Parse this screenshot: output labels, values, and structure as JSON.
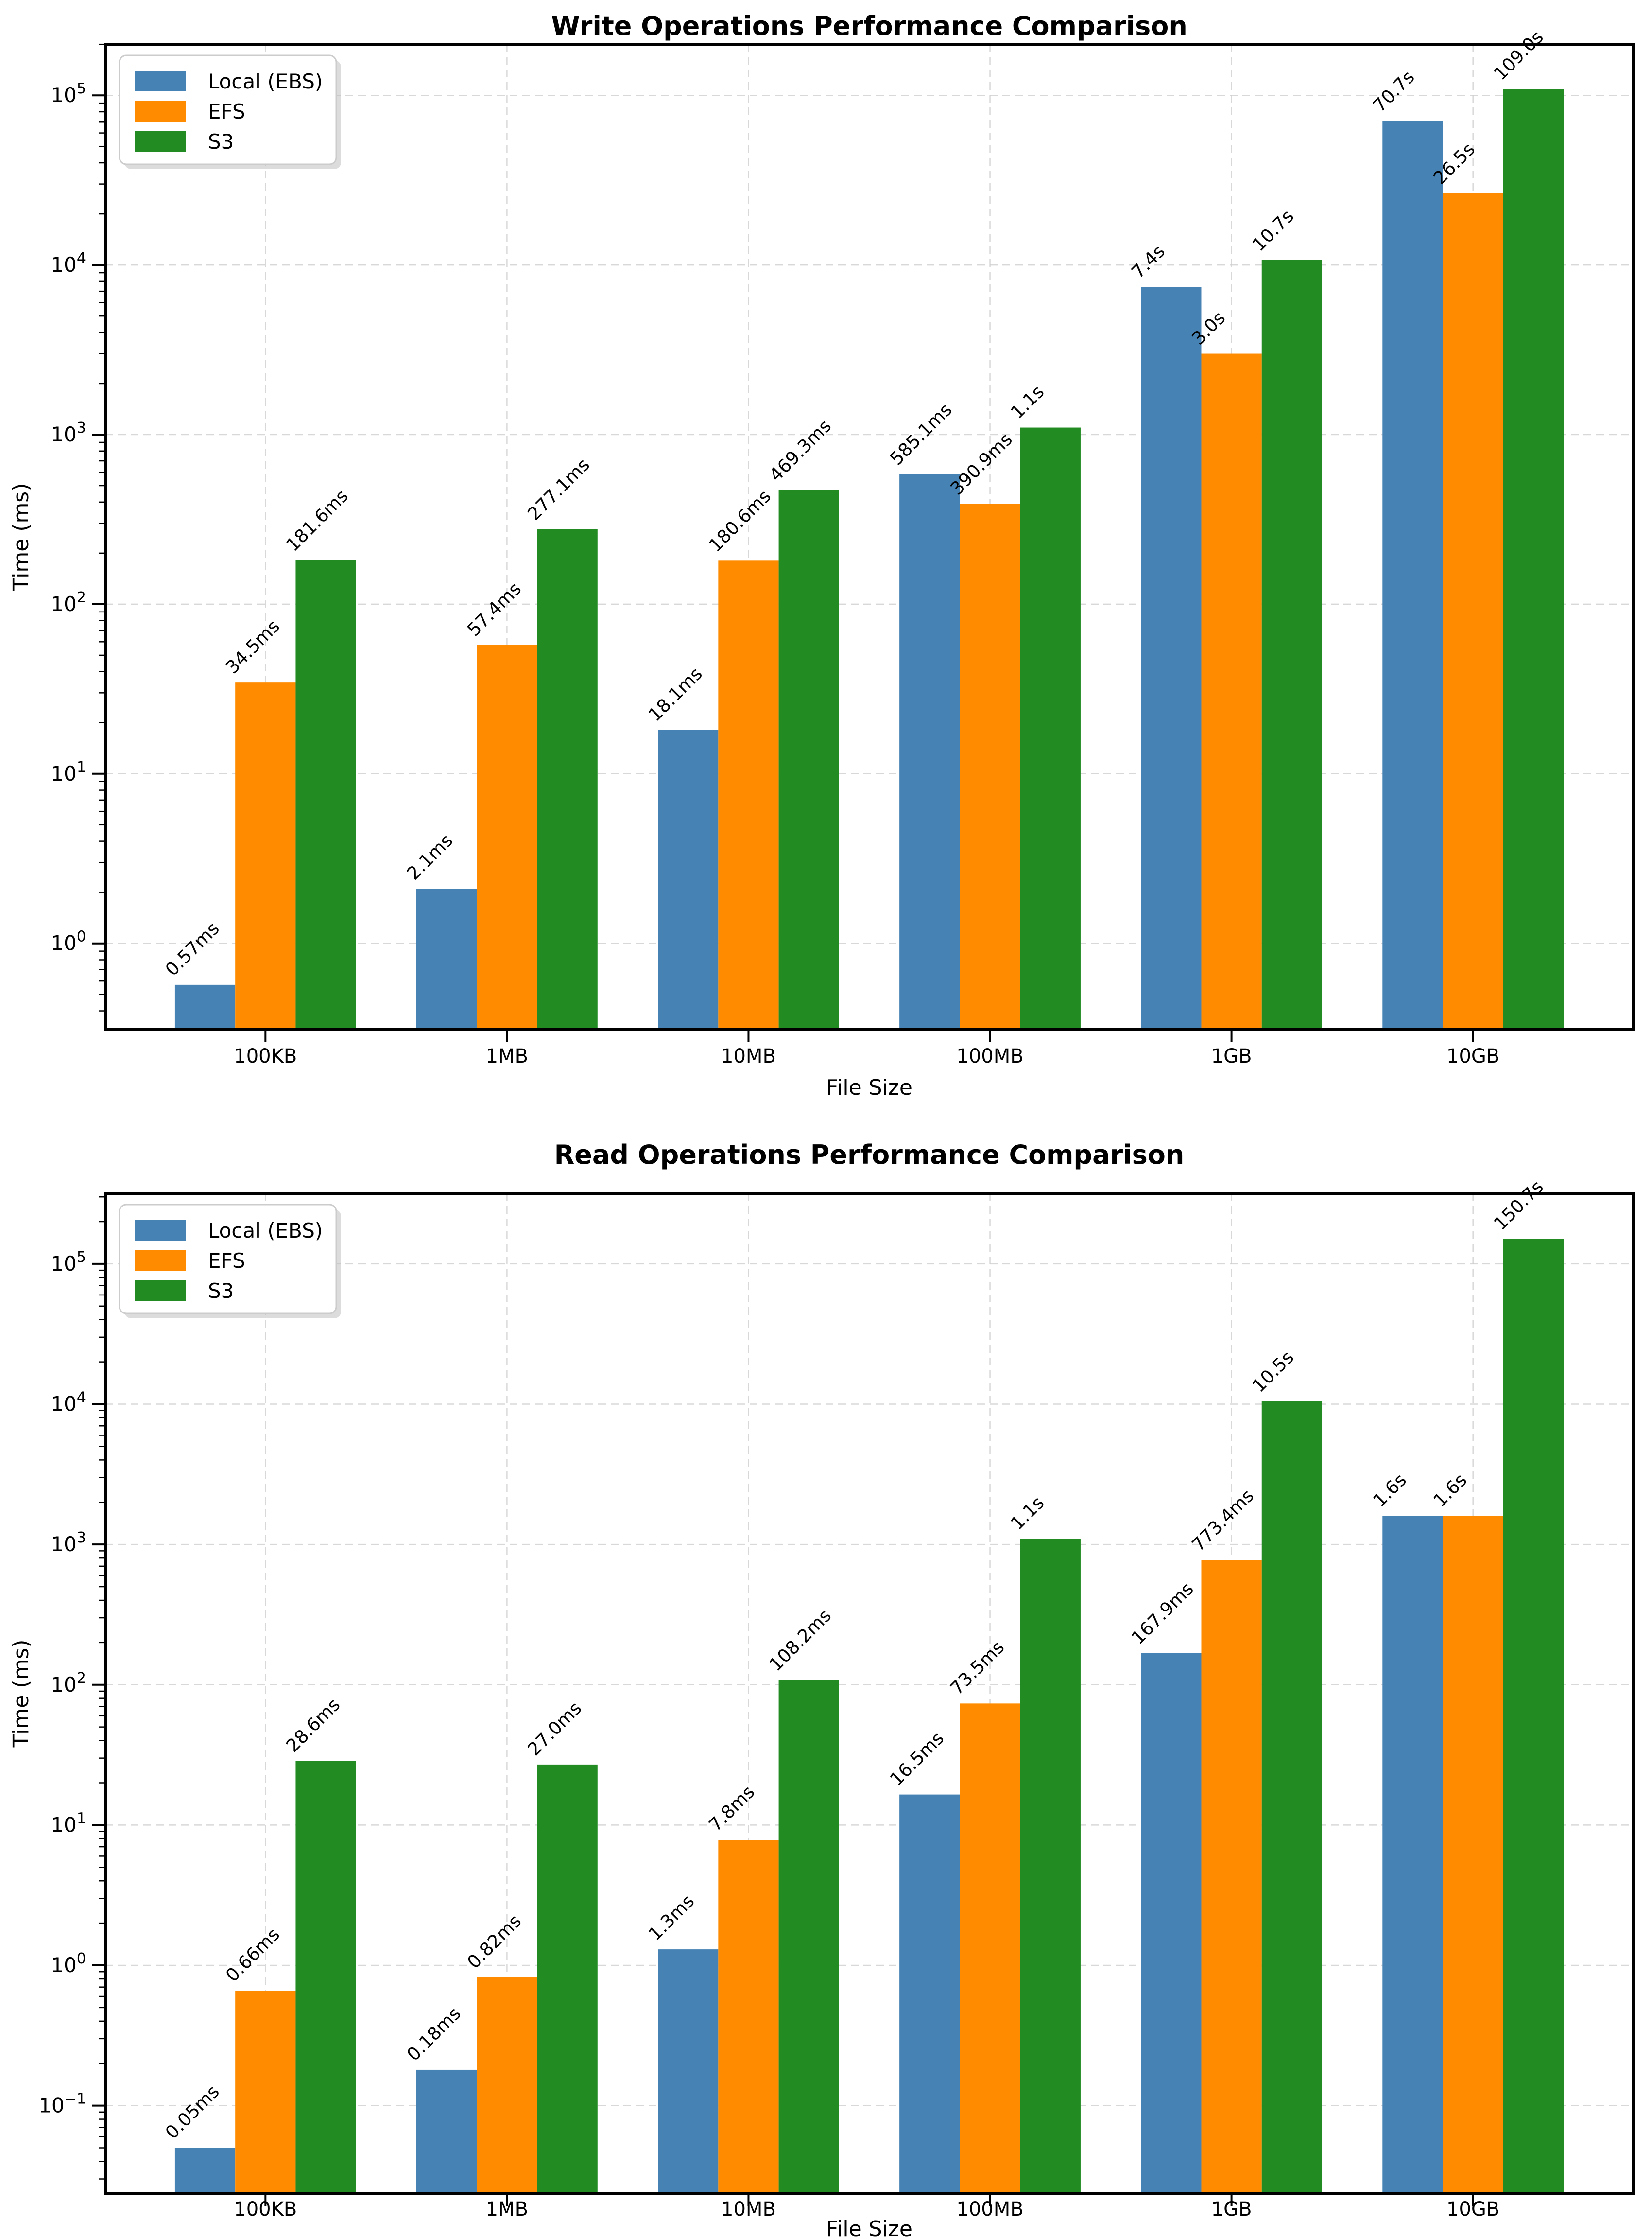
{
  "chart_data": [
    {
      "id": "write-operations",
      "type": "bar",
      "title": "Write Operations Performance Comparison",
      "xlabel": "File Size",
      "ylabel": "Time (ms)",
      "yscale": "log",
      "grid": true,
      "legend_position": "upper-left",
      "categories": [
        "100KB",
        "1MB",
        "10MB",
        "100MB",
        "1GB",
        "10GB"
      ],
      "ylim_log10": [
        -0.5082,
        5.3015
      ],
      "ytick_exponents": [
        0,
        1,
        2,
        3,
        4,
        5
      ],
      "series": [
        {
          "name": "Local (EBS)",
          "color": "#4682B4",
          "values_ms": [
            0.57,
            2.1,
            18.1,
            585.1,
            7400,
            70700
          ],
          "labels": [
            "0.57ms",
            "2.1ms",
            "18.1ms",
            "585.1ms",
            "7.4s",
            "70.7s"
          ]
        },
        {
          "name": "EFS",
          "color": "#FF8C00",
          "values_ms": [
            34.5,
            57.4,
            180.6,
            390.9,
            3000,
            26500
          ],
          "labels": [
            "34.5ms",
            "57.4ms",
            "180.6ms",
            "390.9ms",
            "3.0s",
            "26.5s"
          ]
        },
        {
          "name": "S3",
          "color": "#228B22",
          "values_ms": [
            181.6,
            277.1,
            469.3,
            1100,
            10700,
            109000
          ],
          "labels": [
            "181.6ms",
            "277.1ms",
            "469.3ms",
            "1.1s",
            "10.7s",
            "109.0s"
          ]
        }
      ]
    },
    {
      "id": "read-operations",
      "type": "bar",
      "title": "Read Operations Performance Comparison",
      "xlabel": "File Size",
      "ylabel": "Time (ms)",
      "yscale": "log",
      "grid": true,
      "legend_position": "upper-left",
      "categories": [
        "100KB",
        "1MB",
        "10MB",
        "100MB",
        "1GB",
        "10GB"
      ],
      "ylim_log10": [
        -1.625,
        5.5021
      ],
      "ytick_exponents": [
        -1,
        0,
        1,
        2,
        3,
        4,
        5
      ],
      "series": [
        {
          "name": "Local (EBS)",
          "color": "#4682B4",
          "values_ms": [
            0.05,
            0.18,
            1.3,
            16.5,
            167.9,
            1600
          ],
          "labels": [
            "0.05ms",
            "0.18ms",
            "1.3ms",
            "16.5ms",
            "167.9ms",
            "1.6s"
          ]
        },
        {
          "name": "EFS",
          "color": "#FF8C00",
          "values_ms": [
            0.66,
            0.82,
            7.8,
            73.5,
            773.4,
            1600
          ],
          "labels": [
            "0.66ms",
            "0.82ms",
            "7.8ms",
            "73.5ms",
            "773.4ms",
            "1.6s"
          ]
        },
        {
          "name": "S3",
          "color": "#228B22",
          "values_ms": [
            28.6,
            27.0,
            108.2,
            1100,
            10500,
            150700
          ],
          "labels": [
            "28.6ms",
            "27.0ms",
            "108.2ms",
            "1.1s",
            "10.5s",
            "150.7s"
          ]
        }
      ]
    }
  ],
  "style_colors": {
    "grid": "#cfcfcf",
    "spine": "#000000",
    "legend_border": "#cccccc",
    "legend_shadow": "#bfbfbf"
  }
}
